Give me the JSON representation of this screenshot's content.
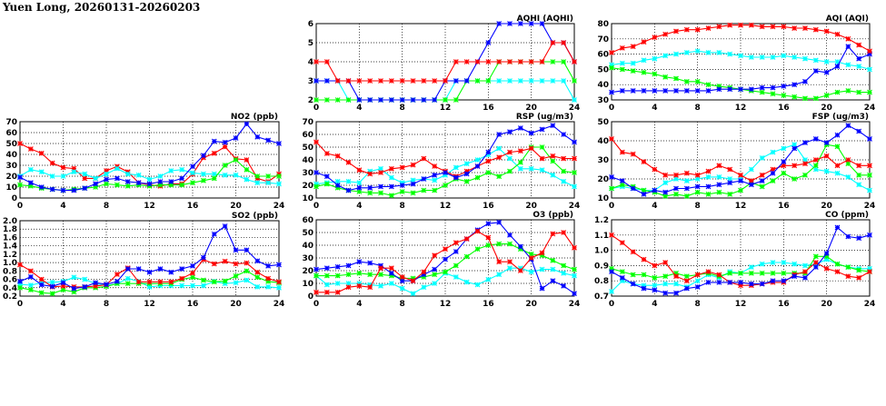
{
  "header": {
    "title": "Yuen Long, 20260131-20260203"
  },
  "chart_data": [
    {
      "type": "line",
      "title": "NO2 (ppb)",
      "xlim": [
        0,
        24
      ],
      "xticks": [
        0,
        4,
        8,
        12,
        16,
        20,
        24
      ],
      "ylim": [
        0,
        70
      ],
      "yticks": [
        0,
        10,
        20,
        30,
        40,
        50,
        60,
        70
      ],
      "grid": true,
      "series": [
        {
          "color": "#ff0000",
          "values": [
            50,
            45,
            41,
            32,
            28,
            27,
            18,
            18,
            25,
            29,
            24,
            14,
            12,
            11,
            13,
            13,
            22,
            37,
            41,
            47,
            36,
            35,
            18,
            15,
            22
          ]
        },
        {
          "color": "#00ffff",
          "values": [
            20,
            26,
            24,
            20,
            20,
            24,
            22,
            18,
            22,
            27,
            22,
            21,
            17,
            20,
            25,
            26,
            23,
            22,
            22,
            21,
            21,
            17,
            14,
            14,
            13
          ]
        },
        {
          "color": "#00ff00",
          "values": [
            12,
            11,
            9,
            8,
            7,
            8,
            9,
            10,
            13,
            12,
            11,
            12,
            11,
            12,
            12,
            12,
            14,
            16,
            18,
            30,
            35,
            26,
            20,
            20,
            20
          ]
        },
        {
          "color": "#0000ff",
          "values": [
            19,
            14,
            10,
            8,
            7,
            7,
            9,
            13,
            17,
            18,
            15,
            14,
            13,
            15,
            15,
            18,
            29,
            39,
            52,
            51,
            55,
            68,
            56,
            53,
            50
          ]
        }
      ]
    },
    {
      "type": "line",
      "title": "SO2 (ppb)",
      "xlim": [
        0,
        24
      ],
      "xticks": [
        0,
        4,
        8,
        12,
        16,
        20,
        24
      ],
      "ylim": [
        0.2,
        2.0
      ],
      "yticks": [
        "0.2",
        "0.4",
        "0.6",
        "0.8",
        "1.0",
        "1.2",
        "1.4",
        "1.6",
        "1.8",
        "2.0"
      ],
      "grid": true,
      "series": [
        {
          "color": "#00ffff",
          "values": [
            0.48,
            0.46,
            0.52,
            0.53,
            0.55,
            0.65,
            0.6,
            0.5,
            0.45,
            0.5,
            0.62,
            0.55,
            0.42,
            0.45,
            0.45,
            0.45,
            0.45,
            0.45,
            0.55,
            0.5,
            0.52,
            0.58,
            0.42,
            0.42,
            0.4
          ]
        },
        {
          "color": "#00ff00",
          "values": [
            0.4,
            0.35,
            0.28,
            0.26,
            0.35,
            0.3,
            0.4,
            0.4,
            0.43,
            0.5,
            0.5,
            0.5,
            0.5,
            0.5,
            0.5,
            0.6,
            0.65,
            0.58,
            0.54,
            0.56,
            0.68,
            0.8,
            0.65,
            0.55,
            0.52
          ]
        },
        {
          "color": "#ff0000",
          "values": [
            0.95,
            0.8,
            0.6,
            0.42,
            0.44,
            0.42,
            0.42,
            0.44,
            0.47,
            0.72,
            0.87,
            0.54,
            0.54,
            0.54,
            0.54,
            0.62,
            0.75,
            1.07,
            0.97,
            1.03,
            0.97,
            0.99,
            0.77,
            0.62,
            0.54
          ]
        },
        {
          "color": "#0000ff",
          "values": [
            0.55,
            0.66,
            0.47,
            0.43,
            0.52,
            0.38,
            0.42,
            0.52,
            0.48,
            0.55,
            0.85,
            0.85,
            0.77,
            0.85,
            0.77,
            0.85,
            0.92,
            1.12,
            1.68,
            1.87,
            1.3,
            1.3,
            1.04,
            0.92,
            0.95
          ]
        }
      ]
    },
    {
      "type": "line",
      "title": "AQHI (AQHI)",
      "xlim": [
        0,
        24
      ],
      "xticks": [
        0,
        4,
        8,
        12,
        16,
        20,
        24
      ],
      "ylim": [
        2,
        6
      ],
      "yticks": [
        2,
        3,
        4,
        5,
        6
      ],
      "grid": true,
      "series": [
        {
          "color": "#00ffff",
          "values": [
            3,
            3,
            3,
            2,
            2,
            2,
            2,
            2,
            2,
            2,
            2,
            2,
            2,
            3,
            3,
            3,
            3,
            3,
            3,
            3,
            3,
            3,
            3,
            3,
            2
          ]
        },
        {
          "color": "#00ff00",
          "values": [
            2,
            2,
            2,
            2,
            2,
            2,
            2,
            2,
            2,
            2,
            2,
            2,
            2,
            2,
            3,
            3,
            3,
            4,
            4,
            4,
            4,
            4,
            4,
            4,
            3
          ]
        },
        {
          "color": "#0000ff",
          "values": [
            3,
            3,
            3,
            3,
            2,
            2,
            2,
            2,
            2,
            2,
            2,
            2,
            3,
            3,
            3,
            4,
            5,
            6,
            6,
            6,
            6,
            6,
            5,
            5,
            4
          ]
        },
        {
          "color": "#ff0000",
          "values": [
            4,
            4,
            3,
            3,
            3,
            3,
            3,
            3,
            3,
            3,
            3,
            3,
            3,
            4,
            4,
            4,
            4,
            4,
            4,
            4,
            4,
            4,
            5,
            5,
            4
          ]
        }
      ]
    },
    {
      "type": "line",
      "title": "RSP (ug/m3)",
      "xlim": [
        0,
        24
      ],
      "xticks": [
        0,
        4,
        8,
        12,
        16,
        20,
        24
      ],
      "ylim": [
        10,
        70
      ],
      "yticks": [
        10,
        20,
        30,
        40,
        50,
        60,
        70
      ],
      "grid": true,
      "series": [
        {
          "color": "#00ffff",
          "values": [
            21,
            22,
            23,
            23,
            22,
            31,
            33,
            26,
            22,
            24,
            25,
            24,
            28,
            34,
            37,
            40,
            44,
            49,
            41,
            33,
            33,
            32,
            28,
            23,
            19
          ]
        },
        {
          "color": "#00ff00",
          "values": [
            19,
            21,
            18,
            16,
            15,
            14,
            14,
            12,
            15,
            14,
            16,
            16,
            20,
            25,
            23,
            26,
            30,
            27,
            31,
            38,
            50,
            50,
            39,
            31,
            30
          ]
        },
        {
          "color": "#ff0000",
          "values": [
            54,
            45,
            43,
            38,
            32,
            29,
            30,
            33,
            34,
            36,
            41,
            35,
            31,
            27,
            31,
            35,
            39,
            42,
            46,
            47,
            49,
            41,
            43,
            41,
            41
          ]
        },
        {
          "color": "#0000ff",
          "values": [
            30,
            27,
            20,
            16,
            18,
            18,
            19,
            19,
            20,
            21,
            25,
            28,
            30,
            26,
            29,
            35,
            46,
            60,
            62,
            65,
            61,
            64,
            67,
            60,
            54
          ]
        }
      ]
    },
    {
      "type": "line",
      "title": "O3 (ppb)",
      "xlim": [
        0,
        24
      ],
      "xticks": [
        0,
        4,
        8,
        12,
        16,
        20,
        24
      ],
      "ylim": [
        0,
        60
      ],
      "yticks": [
        0,
        10,
        20,
        30,
        40,
        50,
        60
      ],
      "grid": true,
      "series": [
        {
          "color": "#00ffff",
          "values": [
            16,
            9,
            10,
            10,
            10,
            9,
            8,
            10,
            6,
            2,
            7,
            10,
            18,
            15,
            11,
            9,
            13,
            17,
            22,
            22,
            19,
            21,
            21,
            18,
            16
          ]
        },
        {
          "color": "#00ff00",
          "values": [
            16,
            16,
            16,
            17,
            18,
            17,
            17,
            16,
            14,
            14,
            15,
            17,
            19,
            24,
            31,
            37,
            40,
            41,
            41,
            37,
            33,
            32,
            28,
            24,
            21
          ]
        },
        {
          "color": "#0000ff",
          "values": [
            21,
            22,
            23,
            24,
            27,
            26,
            24,
            18,
            12,
            12,
            17,
            21,
            29,
            35,
            45,
            52,
            57,
            58,
            48,
            39,
            29,
            6,
            12,
            8,
            2
          ]
        },
        {
          "color": "#ff0000",
          "values": [
            3,
            3,
            3,
            7,
            8,
            7,
            22,
            22,
            15,
            12,
            19,
            32,
            37,
            42,
            45,
            51,
            46,
            27,
            27,
            20,
            30,
            34,
            49,
            50,
            38
          ]
        }
      ]
    },
    {
      "type": "line",
      "title": "AQI (AQI)",
      "xlim": [
        0,
        24
      ],
      "xticks": [
        0,
        4,
        8,
        12,
        16,
        20,
        24
      ],
      "ylim": [
        30,
        80
      ],
      "yticks": [
        30,
        40,
        50,
        60,
        70,
        80
      ],
      "grid": true,
      "series": [
        {
          "color": "#00ffff",
          "values": [
            53,
            54,
            54,
            56,
            57,
            59,
            60,
            61,
            62,
            61,
            61,
            60,
            59,
            58,
            58,
            58,
            59,
            58,
            57,
            56,
            55,
            55,
            53,
            52,
            50
          ]
        },
        {
          "color": "#00ff00",
          "values": [
            51,
            50,
            49,
            48,
            47,
            45,
            44,
            42,
            42,
            40,
            39,
            38,
            37,
            36,
            35,
            34,
            33,
            32,
            31,
            31,
            33,
            35,
            36,
            35,
            35
          ]
        },
        {
          "color": "#0000ff",
          "values": [
            35,
            36,
            36,
            36,
            36,
            36,
            36,
            36,
            36,
            36,
            37,
            37,
            37,
            37,
            38,
            38,
            39,
            40,
            42,
            49,
            48,
            52,
            65,
            57,
            60
          ]
        },
        {
          "color": "#ff0000",
          "values": [
            61,
            64,
            65,
            68,
            71,
            73,
            75,
            76,
            76,
            77,
            78,
            79,
            79,
            79,
            78,
            78,
            78,
            77,
            77,
            76,
            75,
            73,
            70,
            66,
            62
          ]
        }
      ]
    },
    {
      "type": "line",
      "title": "FSP (ug/m3)",
      "xlim": [
        0,
        24
      ],
      "xticks": [
        0,
        4,
        8,
        12,
        16,
        20,
        24
      ],
      "ylim": [
        10,
        50
      ],
      "yticks": [
        10,
        20,
        30,
        40,
        50
      ],
      "grid": true,
      "series": [
        {
          "color": "#00ffff",
          "values": [
            15,
            16,
            15,
            14,
            14,
            18,
            20,
            19,
            20,
            21,
            21,
            20,
            20,
            25,
            31,
            34,
            36,
            38,
            30,
            25,
            24,
            23,
            21,
            17,
            14
          ]
        },
        {
          "color": "#00ff00",
          "values": [
            15,
            17,
            16,
            14,
            13,
            11,
            12,
            11,
            13,
            12,
            13,
            12,
            14,
            18,
            16,
            19,
            23,
            20,
            22,
            27,
            38,
            37,
            28,
            22,
            22
          ]
        },
        {
          "color": "#ff0000",
          "values": [
            41,
            34,
            33,
            29,
            25,
            22,
            22,
            23,
            22,
            24,
            27,
            25,
            22,
            19,
            22,
            25,
            27,
            27,
            28,
            30,
            32,
            27,
            30,
            27,
            27
          ]
        },
        {
          "color": "#0000ff",
          "values": [
            21,
            19,
            15,
            12,
            14,
            13,
            15,
            15,
            16,
            16,
            17,
            18,
            19,
            17,
            19,
            23,
            29,
            36,
            39,
            41,
            39,
            43,
            48,
            45,
            41
          ]
        }
      ]
    },
    {
      "type": "line",
      "title": "CO (ppm)",
      "xlim": [
        0,
        24
      ],
      "xticks": [
        0,
        4,
        8,
        12,
        16,
        20,
        24
      ],
      "ylim": [
        0.7,
        1.2
      ],
      "yticks": [
        "0.7",
        "0.8",
        "0.9",
        "1.0",
        "1.1",
        "1.2"
      ],
      "grid": true,
      "series": [
        {
          "color": "#00ffff",
          "values": [
            0.73,
            0.8,
            0.78,
            0.77,
            0.77,
            0.78,
            0.78,
            0.76,
            0.8,
            0.84,
            0.82,
            0.86,
            0.85,
            0.89,
            0.91,
            0.92,
            0.92,
            0.91,
            0.9,
            0.91,
            0.94,
            0.91,
            0.89,
            0.88,
            0.88
          ]
        },
        {
          "color": "#00ff00",
          "values": [
            0.88,
            0.86,
            0.84,
            0.84,
            0.82,
            0.83,
            0.85,
            0.83,
            0.84,
            0.85,
            0.83,
            0.85,
            0.85,
            0.85,
            0.85,
            0.85,
            0.85,
            0.85,
            0.85,
            0.96,
            0.96,
            0.91,
            0.89,
            0.87,
            0.86
          ]
        },
        {
          "color": "#ff0000",
          "values": [
            1.1,
            1.05,
            0.99,
            0.94,
            0.9,
            0.92,
            0.83,
            0.8,
            0.84,
            0.86,
            0.84,
            0.79,
            0.77,
            0.77,
            0.78,
            0.79,
            0.79,
            0.84,
            0.86,
            0.92,
            0.88,
            0.86,
            0.83,
            0.82,
            0.86
          ]
        },
        {
          "color": "#0000ff",
          "values": [
            0.86,
            0.82,
            0.78,
            0.75,
            0.74,
            0.72,
            0.72,
            0.75,
            0.76,
            0.79,
            0.79,
            0.79,
            0.79,
            0.78,
            0.78,
            0.8,
            0.8,
            0.83,
            0.82,
            0.89,
            0.98,
            1.15,
            1.09,
            1.08,
            1.1
          ]
        }
      ]
    }
  ]
}
